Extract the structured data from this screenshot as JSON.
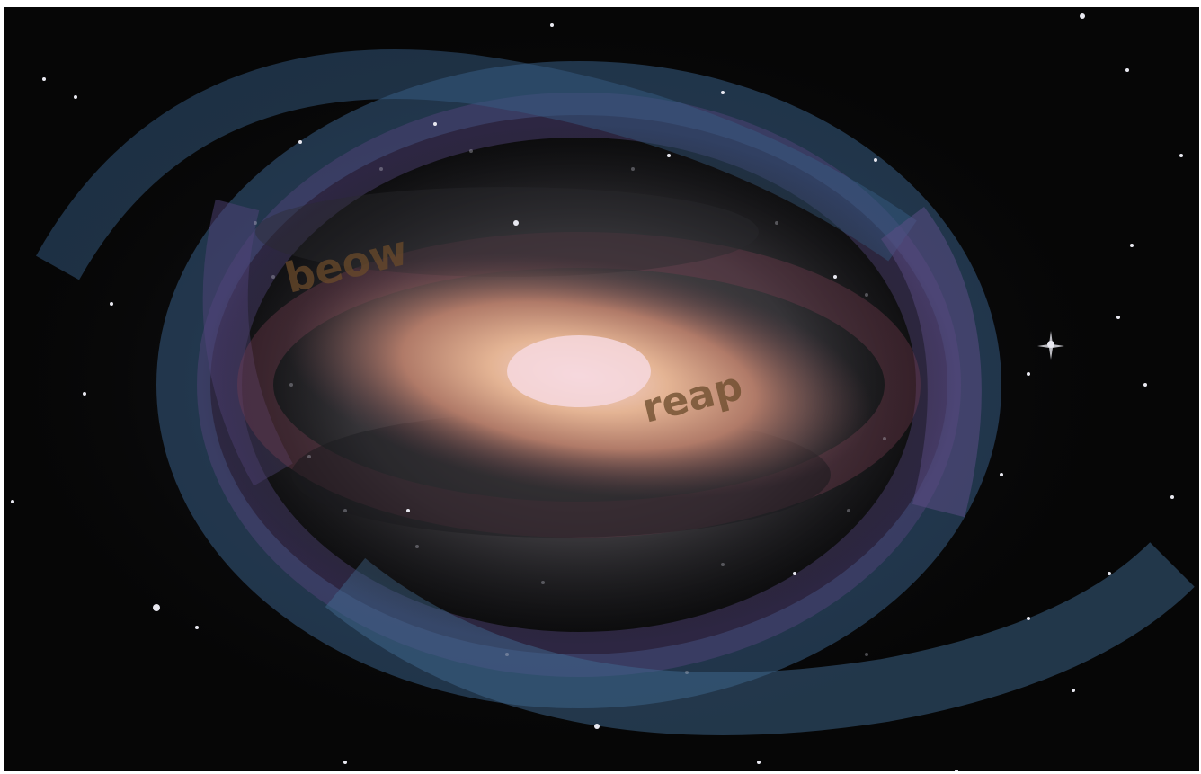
{
  "image": {
    "subject": "galaxy-photo",
    "labels": {
      "upper": "beow",
      "center": "reap"
    },
    "colors": {
      "space": "#060606",
      "core": "#f0c8c4",
      "core_warm": "#c89a78",
      "dust_lane": "#8a4a58",
      "arm_blue": "#4a7aa8",
      "arm_violet": "#6a5a9a",
      "halo_gray": "#4a4a4c",
      "label_color": "#6a4a2a"
    }
  }
}
